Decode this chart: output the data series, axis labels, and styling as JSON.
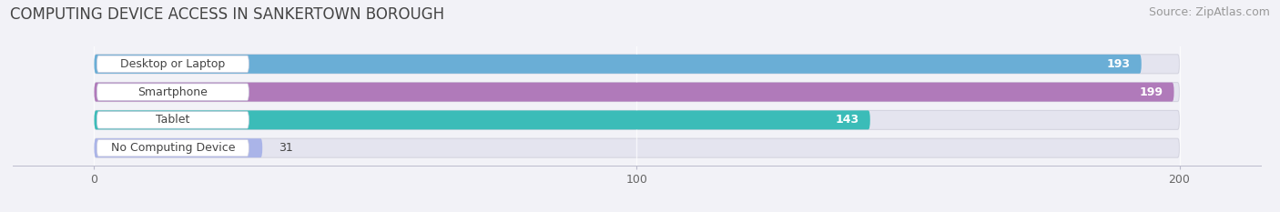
{
  "title": "COMPUTING DEVICE ACCESS IN SANKERTOWN BOROUGH",
  "source": "Source: ZipAtlas.com",
  "categories": [
    "Desktop or Laptop",
    "Smartphone",
    "Tablet",
    "No Computing Device"
  ],
  "values": [
    193,
    199,
    143,
    31
  ],
  "bar_colors": [
    "#6aaed6",
    "#b07aba",
    "#3bbcb8",
    "#aab4e8"
  ],
  "value_labels": [
    "193",
    "199",
    "143",
    "31"
  ],
  "xlim": [
    -15,
    215
  ],
  "data_max": 200,
  "xticks": [
    0,
    100,
    200
  ],
  "background_color": "#f2f2f7",
  "bar_bg_color": "#e4e4ef",
  "label_bg_color": "#ffffff",
  "title_fontsize": 12,
  "source_fontsize": 9,
  "label_fontsize": 9,
  "value_fontsize": 9
}
